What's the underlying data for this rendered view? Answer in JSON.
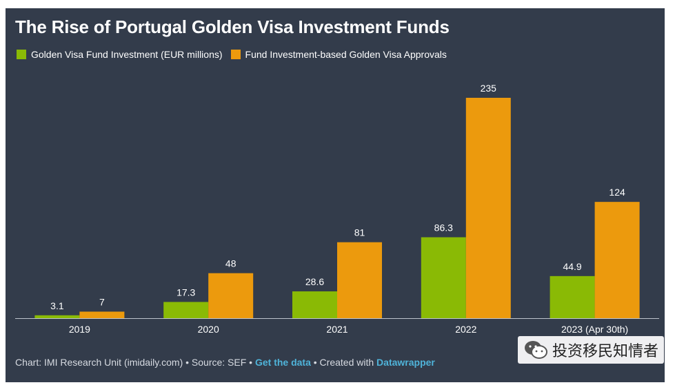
{
  "title": "The Rise of Portugal Golden Visa Investment Funds",
  "colors": {
    "background": "#333c4b",
    "green": "#8aba05",
    "orange": "#ec9a0d",
    "axis": "#bfc5ce",
    "link": "#4fb3d9"
  },
  "chart_data": {
    "type": "bar",
    "categories": [
      "2019",
      "2020",
      "2021",
      "2022",
      "2023 (Apr 30th)"
    ],
    "series": [
      {
        "name": "Golden Visa Fund Investment (EUR millions)",
        "values": [
          3.1,
          17.3,
          28.6,
          86.3,
          44.9
        ],
        "color": "#8aba05"
      },
      {
        "name": "Fund Investment-based Golden Visa Approvals",
        "values": [
          7,
          48,
          81,
          235,
          124
        ],
        "color": "#ec9a0d"
      }
    ],
    "ylim": [
      0,
      235
    ],
    "legend": "top-left",
    "grid": false
  },
  "footer": {
    "credit": "Chart: IMI Research Unit (imidaily.com) • Source: SEF •",
    "get_data": "Get the data",
    "created_with": "• Created with",
    "datawrapper": "Datawrapper"
  },
  "watermark": {
    "icon": "wechat-icon",
    "text": "投资移民知情者"
  }
}
